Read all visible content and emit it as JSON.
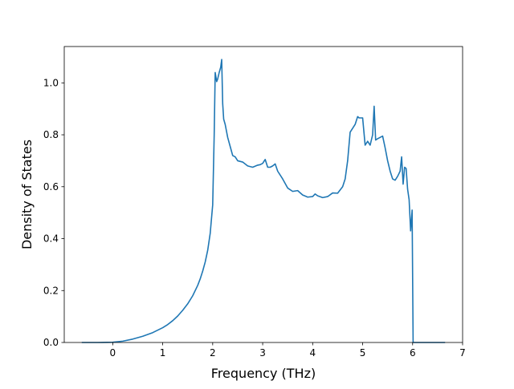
{
  "chart_data": {
    "type": "line",
    "title": "",
    "xlabel": "Frequency (THz)",
    "ylabel": "Density of States",
    "xlim": [
      -0.97,
      7.0
    ],
    "ylim": [
      0.0,
      1.14
    ],
    "xticks": [
      0,
      1,
      2,
      3,
      4,
      5,
      6,
      7
    ],
    "xtick_labels": [
      "0",
      "1",
      "2",
      "3",
      "4",
      "5",
      "6",
      "7"
    ],
    "yticks": [
      0.0,
      0.2,
      0.4,
      0.6,
      0.8,
      1.0
    ],
    "ytick_labels": [
      "0.0",
      "0.2",
      "0.4",
      "0.6",
      "0.8",
      "1.0"
    ],
    "grid": false,
    "series": [
      {
        "color": "#1f77b4",
        "x": [
          -0.62,
          -0.3,
          0.0,
          0.2,
          0.4,
          0.6,
          0.8,
          1.0,
          1.1,
          1.2,
          1.3,
          1.4,
          1.5,
          1.6,
          1.7,
          1.75,
          1.8,
          1.85,
          1.9,
          1.95,
          2.0,
          2.03,
          2.05,
          2.08,
          2.1,
          2.13,
          2.16,
          2.18,
          2.2,
          2.22,
          2.25,
          2.3,
          2.35,
          2.4,
          2.45,
          2.5,
          2.6,
          2.7,
          2.8,
          2.9,
          2.95,
          3.0,
          3.05,
          3.1,
          3.15,
          3.2,
          3.25,
          3.3,
          3.4,
          3.5,
          3.6,
          3.7,
          3.8,
          3.9,
          4.0,
          4.05,
          4.1,
          4.2,
          4.3,
          4.4,
          4.5,
          4.6,
          4.65,
          4.7,
          4.75,
          4.8,
          4.85,
          4.9,
          4.93,
          4.96,
          5.0,
          5.05,
          5.1,
          5.15,
          5.2,
          5.23,
          5.26,
          5.3,
          5.35,
          5.4,
          5.45,
          5.5,
          5.55,
          5.6,
          5.65,
          5.7,
          5.75,
          5.78,
          5.81,
          5.84,
          5.87,
          5.9,
          5.93,
          5.96,
          5.99,
          6.01,
          6.03,
          6.05,
          6.2,
          6.4,
          6.65
        ],
        "y": [
          0.0,
          0.0,
          0.001,
          0.005,
          0.013,
          0.024,
          0.038,
          0.057,
          0.069,
          0.084,
          0.102,
          0.124,
          0.149,
          0.18,
          0.22,
          0.245,
          0.275,
          0.31,
          0.355,
          0.42,
          0.53,
          0.8,
          1.04,
          1.005,
          1.015,
          1.04,
          1.06,
          1.09,
          0.92,
          0.86,
          0.84,
          0.79,
          0.755,
          0.72,
          0.715,
          0.7,
          0.695,
          0.68,
          0.675,
          0.683,
          0.685,
          0.69,
          0.705,
          0.675,
          0.675,
          0.68,
          0.688,
          0.66,
          0.63,
          0.595,
          0.582,
          0.585,
          0.568,
          0.56,
          0.562,
          0.572,
          0.565,
          0.558,
          0.562,
          0.576,
          0.575,
          0.6,
          0.63,
          0.7,
          0.81,
          0.825,
          0.84,
          0.87,
          0.865,
          0.865,
          0.865,
          0.76,
          0.775,
          0.76,
          0.8,
          0.91,
          0.78,
          0.785,
          0.79,
          0.795,
          0.75,
          0.7,
          0.66,
          0.63,
          0.625,
          0.64,
          0.66,
          0.715,
          0.61,
          0.675,
          0.67,
          0.59,
          0.55,
          0.43,
          0.51,
          0.0,
          0.0,
          0.0,
          0.0,
          0.0,
          0.0
        ]
      }
    ]
  }
}
